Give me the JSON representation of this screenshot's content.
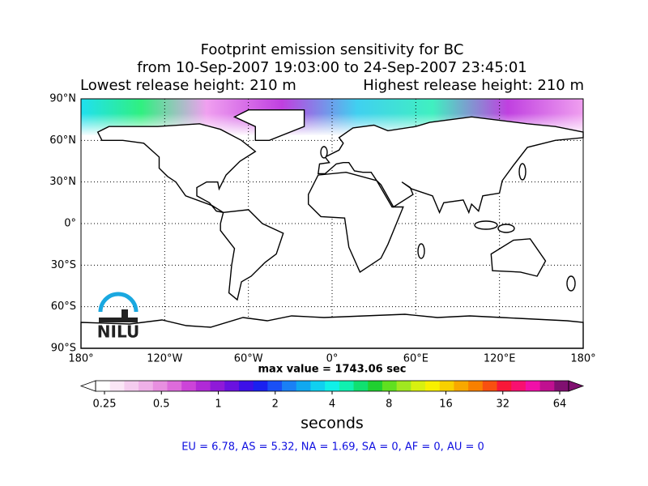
{
  "title": {
    "line1": "Footprint emission sensitivity for BC",
    "line2": "from 10-Sep-2007 19:03:00 to 24-Sep-2007 23:45:01",
    "left": "Lowest release height: 210 m",
    "right": "Highest release height: 210 m"
  },
  "map": {
    "xlim": [
      -180,
      180
    ],
    "ylim": [
      -90,
      90
    ],
    "xticks": [
      {
        "value": -180,
        "label": "180°"
      },
      {
        "value": -120,
        "label": "120°W"
      },
      {
        "value": -60,
        "label": "60°W"
      },
      {
        "value": 0,
        "label": "0°"
      },
      {
        "value": 60,
        "label": "60°E"
      },
      {
        "value": 120,
        "label": "120°E"
      },
      {
        "value": 180,
        "label": "180°"
      }
    ],
    "yticks": [
      {
        "value": 90,
        "label": "90°N"
      },
      {
        "value": 60,
        "label": "60°N"
      },
      {
        "value": 30,
        "label": "30°N"
      },
      {
        "value": 0,
        "label": "0°"
      },
      {
        "value": -30,
        "label": "30°S"
      },
      {
        "value": -60,
        "label": "60°S"
      },
      {
        "value": -90,
        "label": "90°S"
      }
    ],
    "logo": "NILU"
  },
  "max_value": "max value = 1743.06 sec",
  "colorbar": {
    "ticks": [
      0.25,
      0.5,
      1,
      2,
      4,
      8,
      16,
      32,
      64
    ],
    "log": true,
    "label": "seconds",
    "colors": [
      "#ffffff",
      "#fbe6f6",
      "#f5ccef",
      "#efb0e8",
      "#e88fe0",
      "#dd6bdb",
      "#cc44d8",
      "#b02ad6",
      "#8f1ad8",
      "#6a12e0",
      "#3d10e8",
      "#1a20f0",
      "#1a50f5",
      "#1a80f5",
      "#10a8f0",
      "#10d0f0",
      "#10f0e8",
      "#10f0b0",
      "#10e070",
      "#20d030",
      "#60e020",
      "#a0e820",
      "#d8f010",
      "#f8f000",
      "#f8d000",
      "#f8a800",
      "#f88000",
      "#f85010",
      "#f81838",
      "#f81070",
      "#f010a8",
      "#c01090",
      "#801070"
    ]
  },
  "footer": "EU = 6.78,  AS = 5.32,  NA = 1.69,  SA = 0,  AF = 0,  AU = 0"
}
